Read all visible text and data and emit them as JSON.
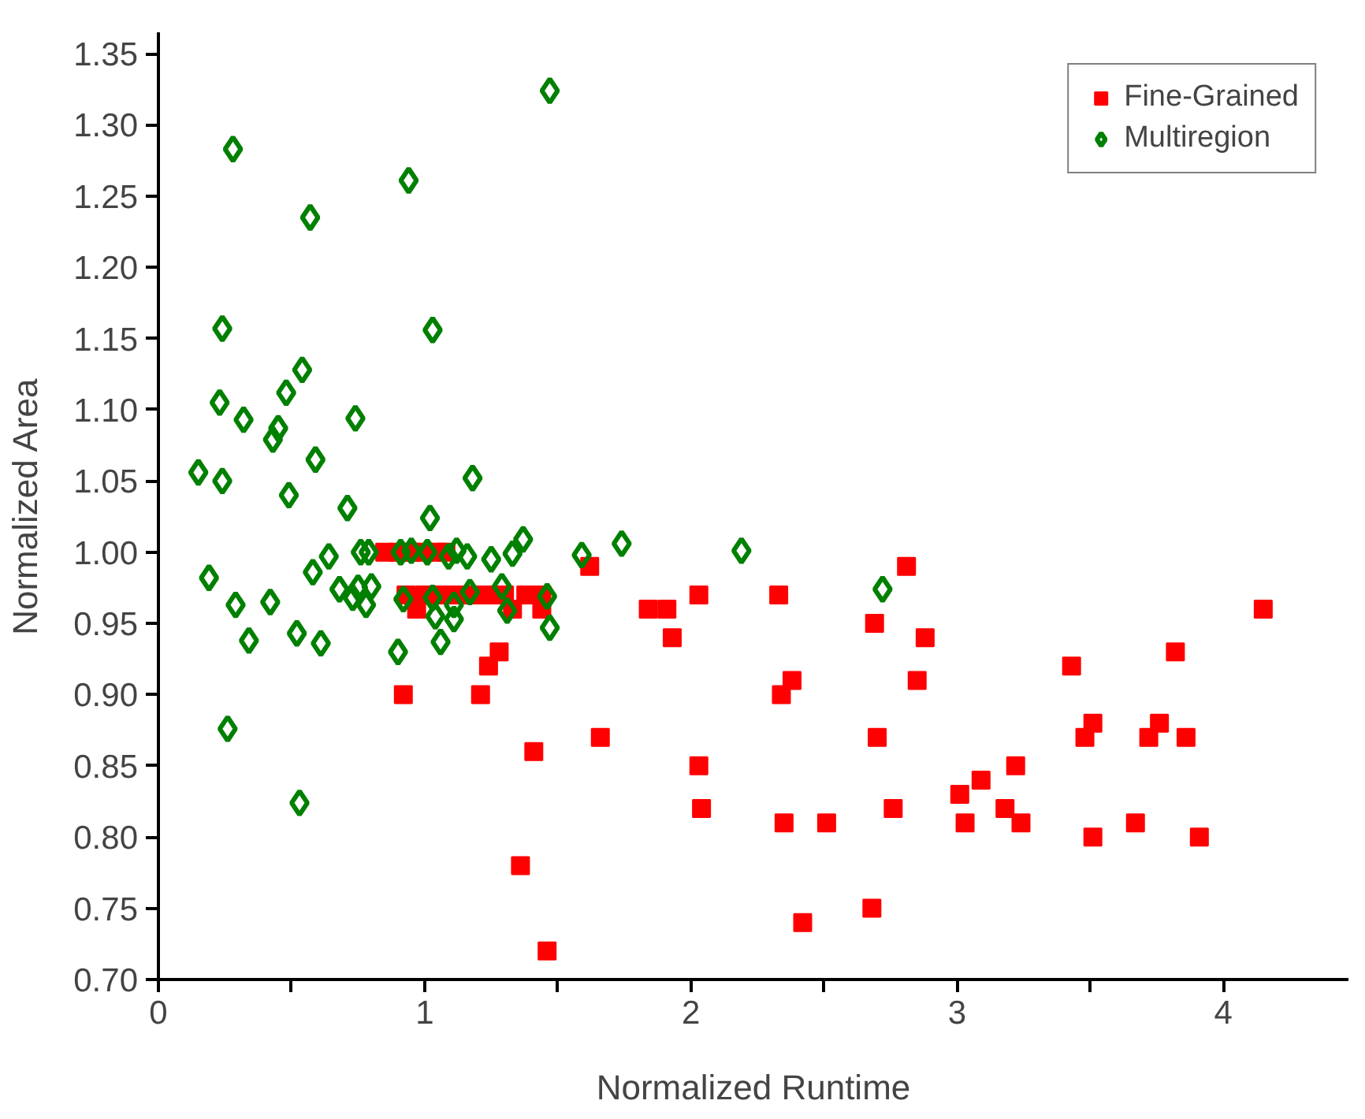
{
  "chart_data": {
    "type": "scatter",
    "xlabel": "Normalized Runtime",
    "ylabel": "Normalized Area",
    "xlim": [
      0,
      4.47
    ],
    "ylim": [
      0.7,
      1.365
    ],
    "xticks": [
      0,
      {
        "value": 0.5,
        "label": null
      },
      1,
      {
        "value": 1.5,
        "label": null
      },
      2,
      {
        "value": 2.5,
        "label": null
      },
      3,
      {
        "value": 3.5,
        "label": null
      },
      4
    ],
    "yticks": [
      {
        "value": 0.7,
        "label": "0.70"
      },
      {
        "value": 0.75,
        "label": "0.75"
      },
      {
        "value": 0.8,
        "label": "0.80"
      },
      {
        "value": 0.85,
        "label": "0.85"
      },
      {
        "value": 0.9,
        "label": "0.90"
      },
      {
        "value": 0.95,
        "label": "0.95"
      },
      {
        "value": 1.0,
        "label": "1.00"
      },
      {
        "value": 1.05,
        "label": "1.05"
      },
      {
        "value": 1.1,
        "label": "1.10"
      },
      {
        "value": 1.15,
        "label": "1.15"
      },
      {
        "value": 1.2,
        "label": "1.20"
      },
      {
        "value": 1.25,
        "label": "1.25"
      },
      {
        "value": 1.3,
        "label": "1.30"
      },
      {
        "value": 1.35,
        "label": "1.35"
      }
    ],
    "grid": false,
    "legend": "top right",
    "series": [
      {
        "name": "Fine-Grained",
        "color": "#ff0000",
        "marker": "square",
        "x": [
          0.85,
          0.9,
          0.95,
          1.0,
          1.05,
          1.08,
          0.93,
          1.0,
          1.05,
          1.1,
          1.15,
          1.2,
          1.25,
          1.3,
          1.38,
          1.44,
          0.97,
          1.33,
          1.44,
          0.92,
          1.21,
          1.28,
          1.24,
          1.41,
          1.66,
          1.36,
          1.46,
          1.62,
          1.84,
          1.91,
          2.03,
          1.93,
          2.33,
          2.81,
          2.69,
          2.88,
          2.38,
          2.34,
          2.85,
          4.15,
          3.82,
          3.43,
          3.51,
          3.48,
          3.76,
          3.72,
          3.86,
          2.7,
          2.03,
          2.04,
          2.35,
          2.51,
          2.76,
          3.01,
          3.09,
          3.22,
          3.03,
          3.18,
          3.24,
          3.51,
          3.67,
          3.91,
          2.42,
          2.68
        ],
        "values": [
          1.0,
          1.0,
          1.0,
          1.0,
          1.0,
          1.0,
          0.97,
          0.97,
          0.97,
          0.97,
          0.97,
          0.97,
          0.97,
          0.97,
          0.97,
          0.97,
          0.96,
          0.96,
          0.96,
          0.9,
          0.9,
          0.93,
          0.92,
          0.86,
          0.87,
          0.78,
          0.72,
          0.99,
          0.96,
          0.96,
          0.97,
          0.94,
          0.97,
          0.99,
          0.95,
          0.94,
          0.91,
          0.9,
          0.91,
          0.96,
          0.93,
          0.92,
          0.88,
          0.87,
          0.88,
          0.87,
          0.87,
          0.87,
          0.85,
          0.82,
          0.81,
          0.81,
          0.82,
          0.83,
          0.84,
          0.85,
          0.81,
          0.82,
          0.81,
          0.8,
          0.81,
          0.8,
          0.74,
          0.75
        ]
      },
      {
        "name": "Multiregion",
        "color": "#008000",
        "marker": "diamond",
        "x": [
          1.47,
          0.28,
          0.94,
          0.57,
          0.24,
          1.03,
          0.54,
          0.48,
          0.23,
          0.32,
          0.74,
          0.45,
          0.43,
          0.59,
          0.15,
          0.24,
          1.18,
          0.49,
          0.71,
          1.02,
          0.19,
          0.29,
          0.42,
          0.34,
          0.52,
          0.61,
          0.9,
          1.06,
          0.26,
          0.53,
          0.58,
          0.64,
          0.68,
          0.73,
          0.75,
          0.78,
          0.8,
          0.76,
          0.79,
          0.91,
          0.95,
          1.01,
          1.12,
          1.16,
          1.25,
          1.33,
          1.37,
          1.59,
          1.74,
          0.92,
          1.03,
          1.04,
          1.11,
          1.11,
          1.17,
          1.29,
          1.31,
          1.46,
          1.47,
          1.09,
          2.19,
          2.72
        ],
        "values": [
          1.324,
          1.283,
          1.261,
          1.235,
          1.157,
          1.156,
          1.128,
          1.112,
          1.105,
          1.093,
          1.094,
          1.087,
          1.079,
          1.065,
          1.056,
          1.05,
          1.052,
          1.04,
          1.031,
          1.024,
          0.982,
          0.963,
          0.965,
          0.938,
          0.943,
          0.936,
          0.93,
          0.937,
          0.876,
          0.824,
          0.986,
          0.997,
          0.974,
          0.968,
          0.975,
          0.963,
          0.976,
          1.0,
          1.0,
          1.0,
          1.001,
          1.0,
          1.001,
          0.997,
          0.995,
          0.999,
          1.009,
          0.998,
          1.006,
          0.967,
          0.968,
          0.955,
          0.963,
          0.953,
          0.972,
          0.976,
          0.959,
          0.969,
          0.947,
          0.997,
          1.001,
          0.974
        ]
      }
    ]
  }
}
